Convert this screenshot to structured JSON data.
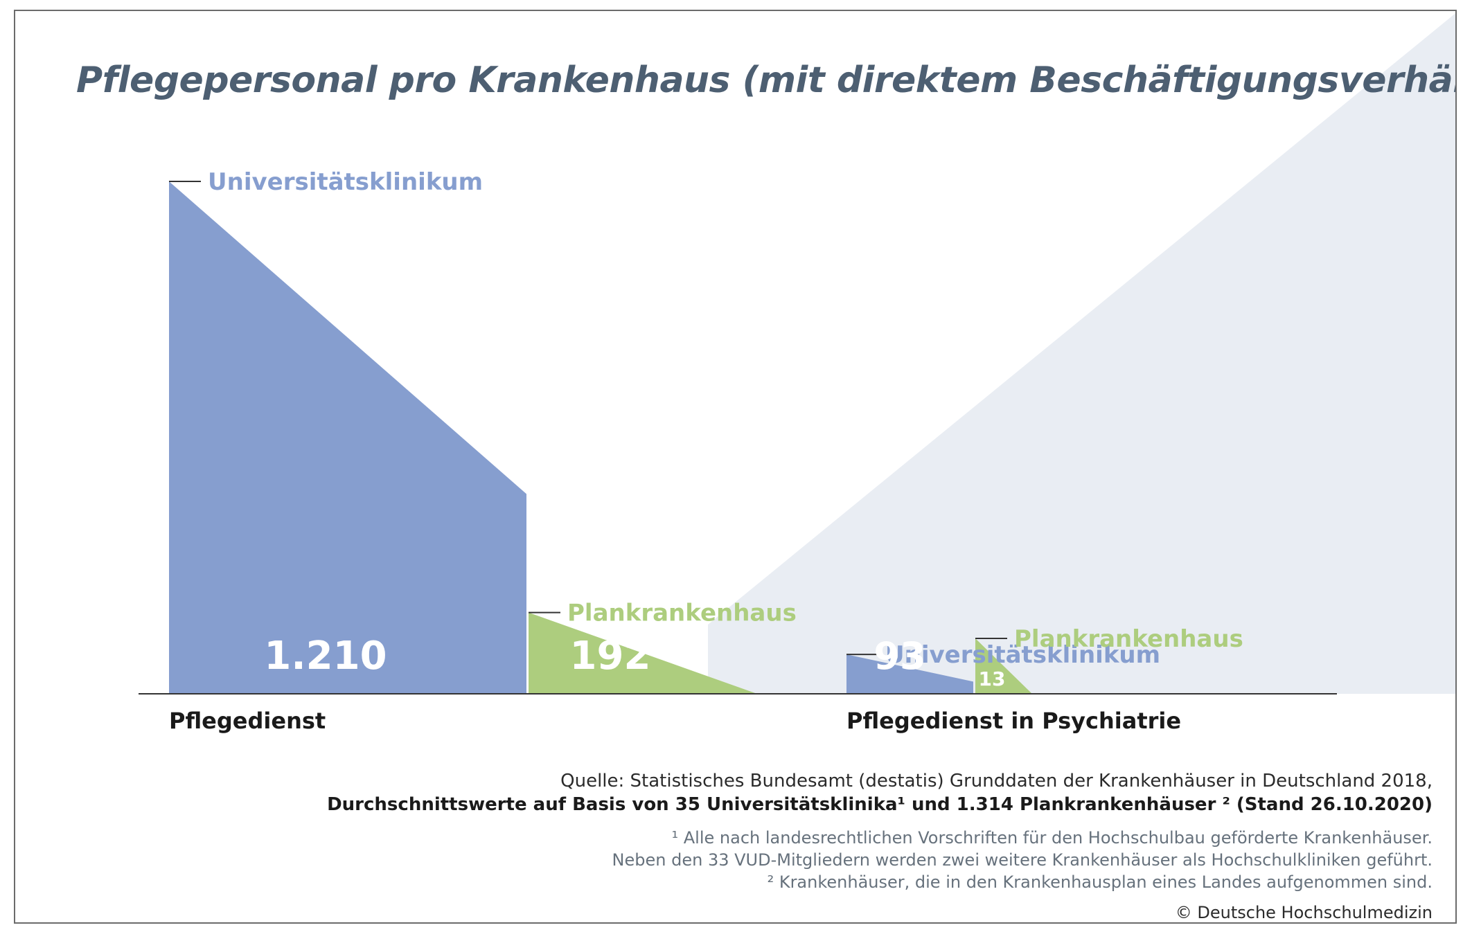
{
  "title": "Pflegepersonal pro Krankenhaus (mit direktem Beschäftigungsverhältnis)",
  "chart_data": {
    "type": "bar",
    "categories": [
      "Pflegedienst",
      "Pflegedienst in Psychiatrie"
    ],
    "series": [
      {
        "name": "Universitätsklinikum",
        "values": [
          1210,
          93
        ]
      },
      {
        "name": "Plankrankenhaus",
        "values": [
          192,
          13
        ]
      }
    ],
    "value_labels": [
      [
        "1.210",
        "192"
      ],
      [
        "93",
        "13"
      ]
    ],
    "colors": {
      "Universitätsklinikum": "#869ecf",
      "Plankrankenhaus": "#adcd7e",
      "background_shape": "#e9edf3"
    },
    "grid": false,
    "legend": "labels-on-bars"
  },
  "source": {
    "line1": "Quelle: Statistisches Bundesamt (destatis) Grunddaten der Krankenhäuser in Deutschland 2018,",
    "line2": "Durchschnittswerte auf Basis von 35 Universitätsklinika¹ und 1.314 Plankrankenhäuser ² (Stand 26.10.2020)"
  },
  "footnotes": [
    "¹ Alle nach landesrechtlichen Vorschriften für den Hochschulbau geförderte Krankenhäuser.",
    "Neben den 33 VUD-Mitgliedern werden zwei weitere Krankenhäuser als Hochschulkliniken geführt.",
    "² Krankenhäuser, die in den Krankenhausplan eines Landes aufgenommen sind."
  ],
  "copyright": "© Deutsche Hochschulmedizin"
}
